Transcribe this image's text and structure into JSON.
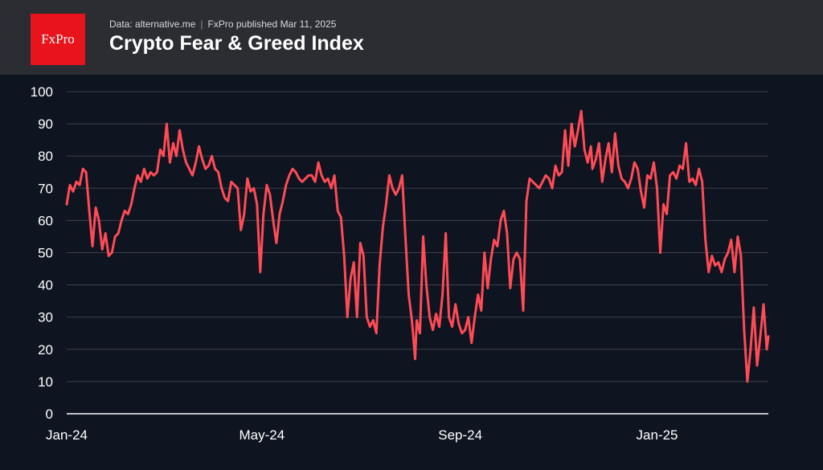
{
  "header": {
    "logo_text": "FxPro",
    "source": "Data: alternative.me",
    "separator": "|",
    "published": "FxPro published Mar 11, 2025",
    "title": "Crypto Fear & Greed Index"
  },
  "colors": {
    "line": "#ff4b55",
    "background": "#0e1420",
    "header": "#2b2d33",
    "brand": "#e8131b",
    "grid": "#3a3f4b"
  },
  "chart_data": {
    "type": "line",
    "title": "Crypto Fear & Greed Index",
    "xlabel": "",
    "ylabel": "",
    "ylim": [
      0,
      100
    ],
    "yticks": [
      0,
      10,
      20,
      30,
      40,
      50,
      60,
      70,
      80,
      90,
      100
    ],
    "xlim": [
      "2024-01-01",
      "2025-03-11"
    ],
    "xticks": [
      {
        "date": "2024-01-01",
        "label": "Jan-24"
      },
      {
        "date": "2024-05-01",
        "label": "May-24"
      },
      {
        "date": "2024-09-01",
        "label": "Sep-24"
      },
      {
        "date": "2025-01-01",
        "label": "Jan-25"
      }
    ],
    "grid": true,
    "legend": "none",
    "series": [
      {
        "x": [
          "2024-01-01",
          "2024-01-03",
          "2024-01-05",
          "2024-01-07",
          "2024-01-09",
          "2024-01-11",
          "2024-01-13",
          "2024-01-15",
          "2024-01-17",
          "2024-01-19",
          "2024-01-21",
          "2024-01-23",
          "2024-01-25",
          "2024-01-27",
          "2024-01-29",
          "2024-01-31",
          "2024-02-02",
          "2024-02-04",
          "2024-02-06",
          "2024-02-08",
          "2024-02-10",
          "2024-02-12",
          "2024-02-14",
          "2024-02-16",
          "2024-02-18",
          "2024-02-20",
          "2024-02-22",
          "2024-02-24",
          "2024-02-26",
          "2024-02-28",
          "2024-03-01",
          "2024-03-03",
          "2024-03-05",
          "2024-03-07",
          "2024-03-09",
          "2024-03-11",
          "2024-03-13",
          "2024-03-15",
          "2024-03-17",
          "2024-03-19",
          "2024-03-21",
          "2024-03-23",
          "2024-03-25",
          "2024-03-27",
          "2024-03-29",
          "2024-03-31",
          "2024-04-02",
          "2024-04-04",
          "2024-04-06",
          "2024-04-08",
          "2024-04-10",
          "2024-04-12",
          "2024-04-14",
          "2024-04-16",
          "2024-04-18",
          "2024-04-20",
          "2024-04-22",
          "2024-04-24",
          "2024-04-26",
          "2024-04-28",
          "2024-04-30",
          "2024-05-02",
          "2024-05-04",
          "2024-05-06",
          "2024-05-08",
          "2024-05-10",
          "2024-05-12",
          "2024-05-14",
          "2024-05-16",
          "2024-05-18",
          "2024-05-20",
          "2024-05-22",
          "2024-05-24",
          "2024-05-26",
          "2024-05-28",
          "2024-05-30",
          "2024-06-01",
          "2024-06-03",
          "2024-06-05",
          "2024-06-07",
          "2024-06-09",
          "2024-06-11",
          "2024-06-13",
          "2024-06-15",
          "2024-06-17",
          "2024-06-19",
          "2024-06-21",
          "2024-06-23",
          "2024-06-25",
          "2024-06-27",
          "2024-06-29",
          "2024-07-01",
          "2024-07-03",
          "2024-07-05",
          "2024-07-07",
          "2024-07-09",
          "2024-07-11",
          "2024-07-13",
          "2024-07-15",
          "2024-07-17",
          "2024-07-19",
          "2024-07-21",
          "2024-07-23",
          "2024-07-25",
          "2024-07-27",
          "2024-07-29",
          "2024-07-31",
          "2024-08-02",
          "2024-08-04",
          "2024-08-05",
          "2024-08-07",
          "2024-08-09",
          "2024-08-11",
          "2024-08-13",
          "2024-08-15",
          "2024-08-17",
          "2024-08-19",
          "2024-08-21",
          "2024-08-23",
          "2024-08-25",
          "2024-08-27",
          "2024-08-29",
          "2024-08-31",
          "2024-09-02",
          "2024-09-04",
          "2024-09-06",
          "2024-09-08",
          "2024-09-10",
          "2024-09-12",
          "2024-09-14",
          "2024-09-16",
          "2024-09-18",
          "2024-09-20",
          "2024-09-22",
          "2024-09-24",
          "2024-09-26",
          "2024-09-28",
          "2024-09-30",
          "2024-10-02",
          "2024-10-04",
          "2024-10-06",
          "2024-10-08",
          "2024-10-10",
          "2024-10-12",
          "2024-10-14",
          "2024-10-16",
          "2024-10-18",
          "2024-10-20",
          "2024-10-22",
          "2024-10-24",
          "2024-10-26",
          "2024-10-28",
          "2024-10-30",
          "2024-11-01",
          "2024-11-03",
          "2024-11-05",
          "2024-11-07",
          "2024-11-09",
          "2024-11-11",
          "2024-11-13",
          "2024-11-15",
          "2024-11-17",
          "2024-11-19",
          "2024-11-21",
          "2024-11-22",
          "2024-11-24",
          "2024-11-26",
          "2024-11-28",
          "2024-11-30",
          "2024-12-02",
          "2024-12-04",
          "2024-12-06",
          "2024-12-08",
          "2024-12-10",
          "2024-12-12",
          "2024-12-14",
          "2024-12-16",
          "2024-12-18",
          "2024-12-20",
          "2024-12-22",
          "2024-12-24",
          "2024-12-26",
          "2024-12-28",
          "2024-12-30",
          "2025-01-01",
          "2025-01-03",
          "2025-01-05",
          "2025-01-07",
          "2025-01-09",
          "2025-01-11",
          "2025-01-13",
          "2025-01-15",
          "2025-01-17",
          "2025-01-19",
          "2025-01-21",
          "2025-01-23",
          "2025-01-25",
          "2025-01-27",
          "2025-01-29",
          "2025-01-31",
          "2025-02-02",
          "2025-02-04",
          "2025-02-06",
          "2025-02-08",
          "2025-02-10",
          "2025-02-12",
          "2025-02-14",
          "2025-02-16",
          "2025-02-18",
          "2025-02-20",
          "2025-02-22",
          "2025-02-24",
          "2025-02-26",
          "2025-02-28",
          "2025-03-02",
          "2025-03-04",
          "2025-03-06",
          "2025-03-08",
          "2025-03-10",
          "2025-03-11"
        ],
        "values": [
          65,
          71,
          69,
          72,
          71,
          76,
          75,
          63,
          52,
          64,
          60,
          51,
          56,
          49,
          50,
          55,
          56,
          60,
          63,
          62,
          65,
          70,
          74,
          72,
          76,
          73,
          75,
          74,
          75,
          82,
          80,
          90,
          78,
          84,
          80,
          88,
          82,
          78,
          76,
          74,
          78,
          83,
          79,
          76,
          77,
          80,
          76,
          75,
          70,
          67,
          66,
          72,
          71,
          70,
          57,
          62,
          73,
          69,
          70,
          65,
          44,
          62,
          71,
          68,
          60,
          53,
          62,
          66,
          71,
          74,
          76,
          75,
          73,
          72,
          73,
          74,
          74,
          72,
          78,
          74,
          72,
          73,
          70,
          74,
          63,
          61,
          49,
          30,
          42,
          47,
          30,
          53,
          49,
          30,
          27,
          29,
          25,
          46,
          58,
          65,
          74,
          70,
          68,
          70,
          74,
          55,
          37,
          29,
          17,
          29,
          25,
          55,
          40,
          30,
          26,
          31,
          27,
          37,
          56,
          30,
          27,
          34,
          28,
          25,
          26,
          30,
          22,
          30,
          37,
          32,
          50,
          39,
          48,
          54,
          52,
          60,
          63,
          56,
          39,
          48,
          50,
          48,
          32,
          66,
          73,
          72,
          71,
          70,
          72,
          74,
          73,
          70,
          77,
          74,
          75,
          88,
          77,
          90,
          83,
          88,
          94,
          82,
          78,
          83,
          76,
          79,
          84,
          72,
          79,
          84,
          75,
          87,
          77,
          73,
          72,
          70,
          73,
          78,
          76,
          69,
          64,
          74,
          73,
          78,
          70,
          50,
          65,
          62,
          74,
          75,
          73,
          77,
          76,
          84,
          72,
          73,
          71,
          76,
          72,
          54,
          44,
          49,
          46,
          47,
          44,
          48,
          50,
          54,
          44,
          55,
          49,
          26,
          10,
          20,
          33,
          15,
          24,
          34,
          20,
          24
        ]
      }
    ]
  }
}
